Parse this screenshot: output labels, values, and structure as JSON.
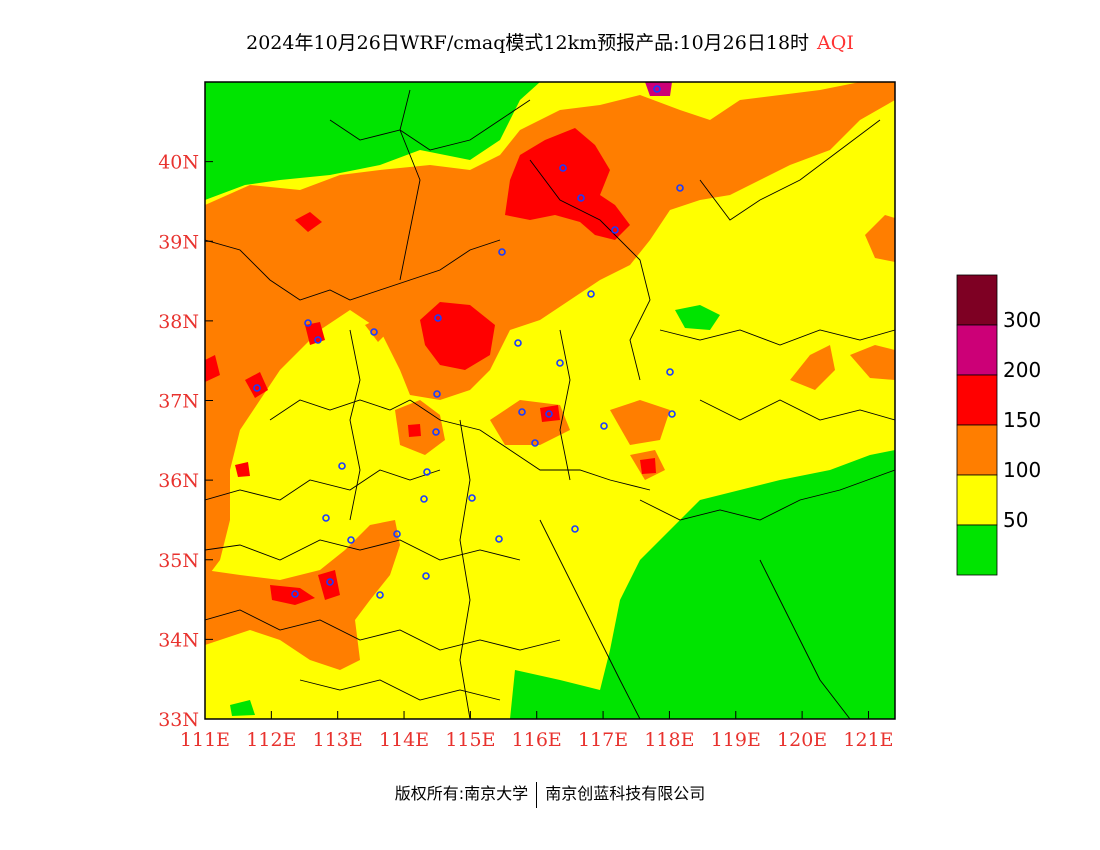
{
  "title": {
    "main": "2024年10月26日WRF/cmaq模式12km预报产品:10月26日18时",
    "variable": "AQI",
    "variable_color": "#ff3333"
  },
  "map": {
    "lon_range": [
      111,
      121.4
    ],
    "lat_range": [
      33,
      41
    ],
    "x_ticks": [
      "111E",
      "112E",
      "113E",
      "114E",
      "115E",
      "116E",
      "117E",
      "118E",
      "119E",
      "120E",
      "121E"
    ],
    "y_ticks": [
      "33N",
      "34N",
      "35N",
      "36N",
      "37N",
      "38N",
      "39N",
      "40N"
    ],
    "tick_color": "#e8322e",
    "background_category": "51-100"
  },
  "legend": {
    "bins": [
      {
        "range": "0-50",
        "color": "#00e400"
      },
      {
        "range": "51-100",
        "color": "#ffff00"
      },
      {
        "range": "101-150",
        "color": "#ff7e00"
      },
      {
        "range": "151-200",
        "color": "#ff0000"
      },
      {
        "range": "201-300",
        "color": "#cc0077"
      },
      {
        "range": ">300",
        "color": "#7e0023"
      }
    ],
    "labels": [
      "300",
      "200",
      "150",
      "100",
      "50"
    ]
  },
  "footer": {
    "left": "版权所有:南京大学",
    "right": "南京创蓝科技有限公司"
  }
}
